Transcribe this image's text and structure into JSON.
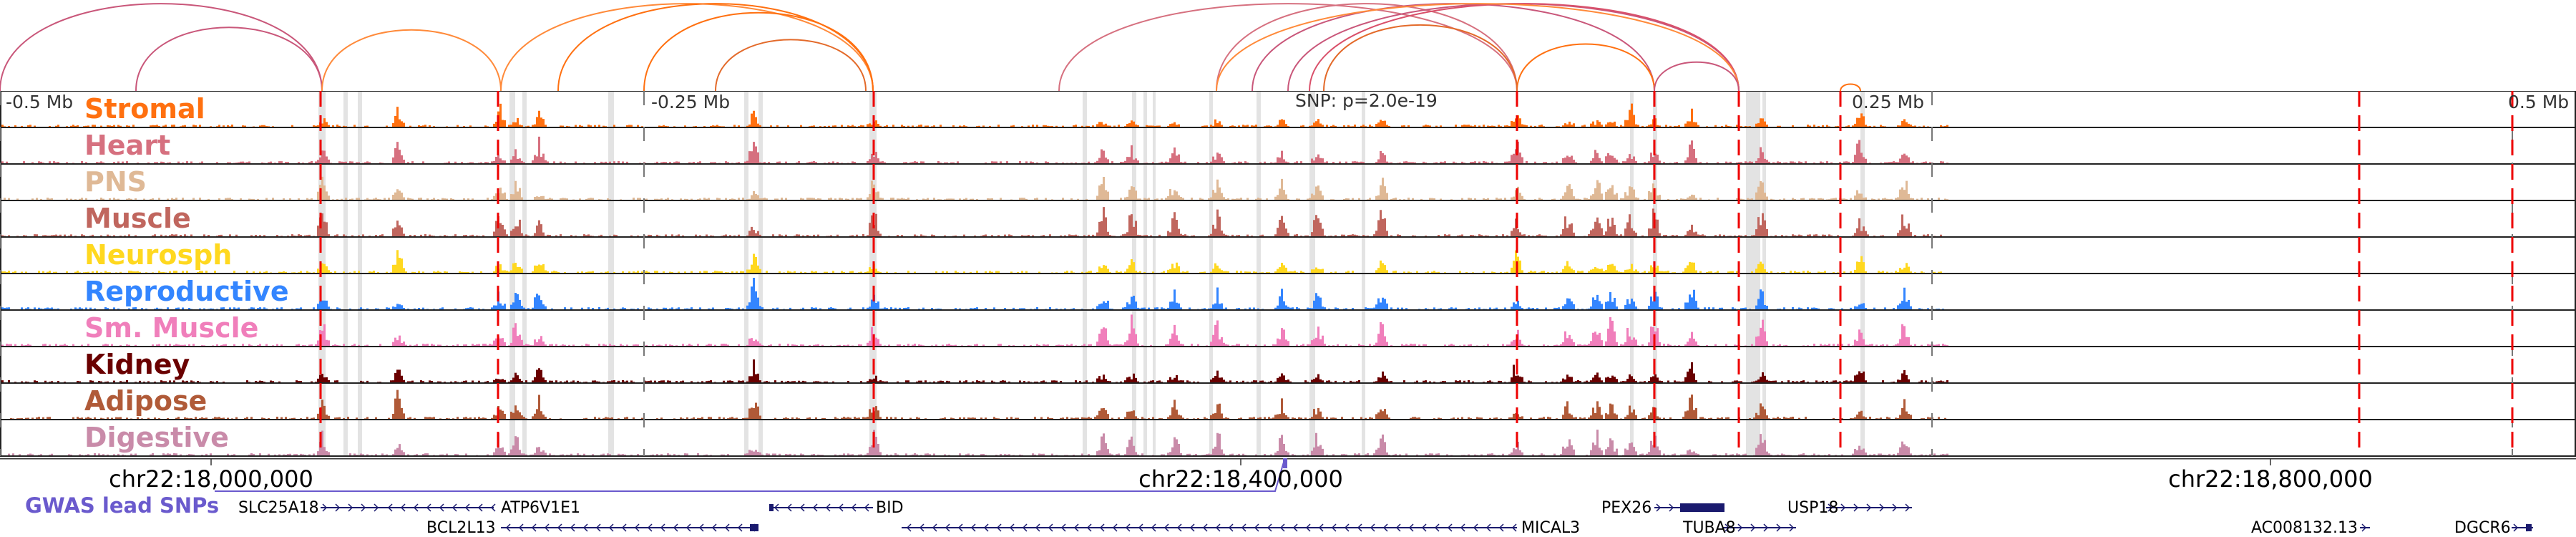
{
  "tracks": [
    {
      "name": "Stromal",
      "color": "#ff7010"
    },
    {
      "name": "Heart",
      "color": "#d6707f"
    },
    {
      "name": "PNS",
      "color": "#dfb996"
    },
    {
      "name": "Muscle",
      "color": "#c0665e"
    },
    {
      "name": "Neurosph",
      "color": "#ffd81f"
    },
    {
      "name": "Reproductive",
      "color": "#3385ff"
    },
    {
      "name": "Sm. Muscle",
      "color": "#f07fbb"
    },
    {
      "name": "Kidney",
      "color": "#6a0000"
    },
    {
      "name": "Adipose",
      "color": "#b05a38"
    },
    {
      "name": "Digestive",
      "color": "#c98ba9"
    }
  ],
  "scale_labels": [
    "-0.5 Mb",
    "-0.25 Mb",
    "0.25 Mb",
    "0.5 Mb"
  ],
  "snp_label": "SNP: p=2.0e-19",
  "coordinates": [
    "chr22:18,000,000",
    "chr22:18,400,000",
    "chr22:18,800,000"
  ],
  "gwas_label": "GWAS lead SNPs",
  "genes": [
    "SLC25A18",
    "ATP6V1E1",
    "BID",
    "PEX26",
    "USP18",
    "BCL2L13",
    "MICAL3",
    "TUBA8",
    "AC008132.13",
    "DGCR6"
  ],
  "colors": {
    "snp_line": "#ee0000",
    "gwas": "#6a5acd",
    "gene": "#1a1a6e",
    "highlight": "#e3e3e3"
  }
}
